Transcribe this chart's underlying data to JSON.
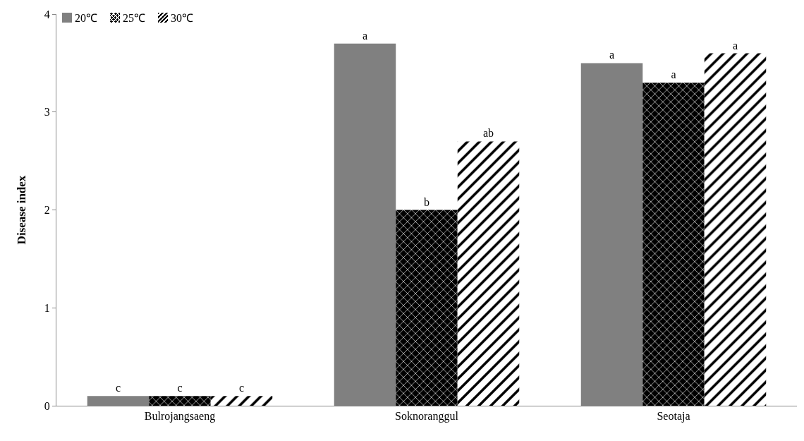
{
  "chart_data": {
    "type": "bar",
    "ylabel": "Disease index",
    "categories": [
      "Bulrojangsaeng",
      "Soknoranggul",
      "Seotaja"
    ],
    "series": [
      {
        "name": "20℃",
        "color": "#808080",
        "values": [
          0.1,
          3.7,
          3.5
        ],
        "value_labels": [
          "c",
          "a",
          "a"
        ]
      },
      {
        "name": "25℃",
        "color": "#000000",
        "values": [
          0.1,
          2.0,
          3.3
        ],
        "value_labels": [
          "c",
          "b",
          "a"
        ]
      },
      {
        "name": "30℃",
        "color": "#000000",
        "values": [
          0.1,
          2.7,
          3.6
        ],
        "value_labels": [
          "c",
          "ab",
          "a"
        ]
      }
    ],
    "ylim": [
      0,
      4
    ],
    "yticks": [
      0,
      1,
      2,
      3,
      4
    ],
    "grid": false,
    "legend": "top left"
  }
}
